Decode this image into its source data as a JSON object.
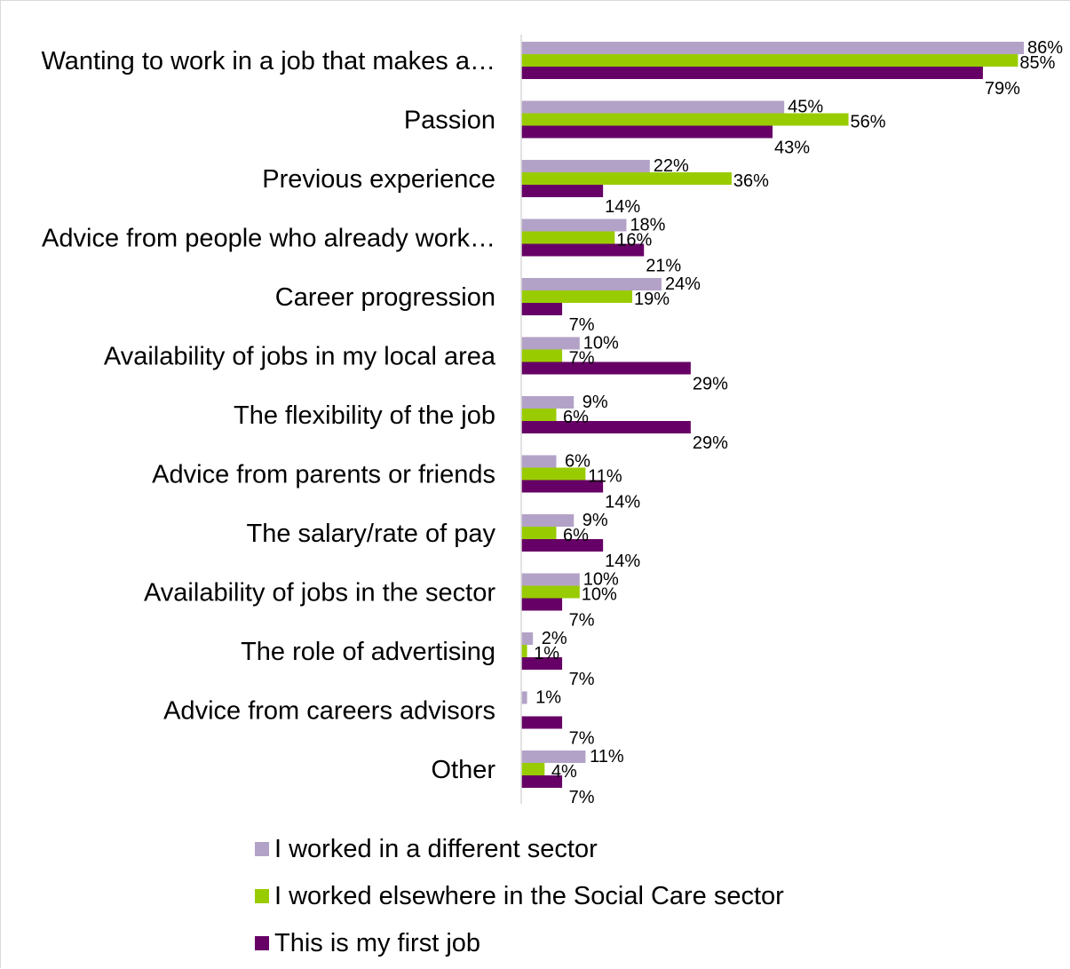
{
  "chart_data": {
    "type": "bar",
    "orientation": "horizontal",
    "categories": [
      "Wanting to work in a job that makes a…",
      "Passion",
      "Previous experience",
      "Advice from people who already work…",
      "Career progression",
      "Availability of jobs in my local area",
      "The flexibility of the job",
      "Advice from parents or friends",
      "The salary/rate of pay",
      "Availability of jobs in the sector",
      "The role of advertising",
      "Advice from careers advisors",
      "Other"
    ],
    "series": [
      {
        "name": "I worked in a different sector",
        "color": "#b3a2c7",
        "values": [
          86,
          45,
          22,
          18,
          24,
          10,
          9,
          6,
          9,
          10,
          2,
          1,
          11
        ],
        "labels": [
          "86%",
          "45%",
          "22%",
          "18%",
          "24%",
          "10%",
          "9%",
          "6%",
          "9%",
          "10%",
          "2%",
          "1%",
          "11%"
        ]
      },
      {
        "name": "I worked elsewhere in the Social Care sector",
        "color": "#99cc00",
        "values": [
          85,
          56,
          36,
          16,
          19,
          7,
          6,
          11,
          6,
          10,
          1,
          0,
          4
        ],
        "labels": [
          "85%",
          "56%",
          "36%",
          "16%",
          "19%",
          "7%",
          "6%",
          "11%",
          "6%",
          "10%",
          "1%",
          "",
          "4%"
        ]
      },
      {
        "name": "This is my first job",
        "color": "#660066",
        "values": [
          79,
          43,
          14,
          21,
          7,
          29,
          29,
          14,
          14,
          7,
          7,
          7,
          7
        ],
        "labels": [
          "79%",
          "43%",
          "14%",
          "21%",
          "7%",
          "29%",
          "29%",
          "14%",
          "14%",
          "7%",
          "7%",
          "7%",
          "7%"
        ]
      }
    ],
    "xlim": [
      0,
      86
    ],
    "grid": false,
    "legend_position": "bottom"
  }
}
